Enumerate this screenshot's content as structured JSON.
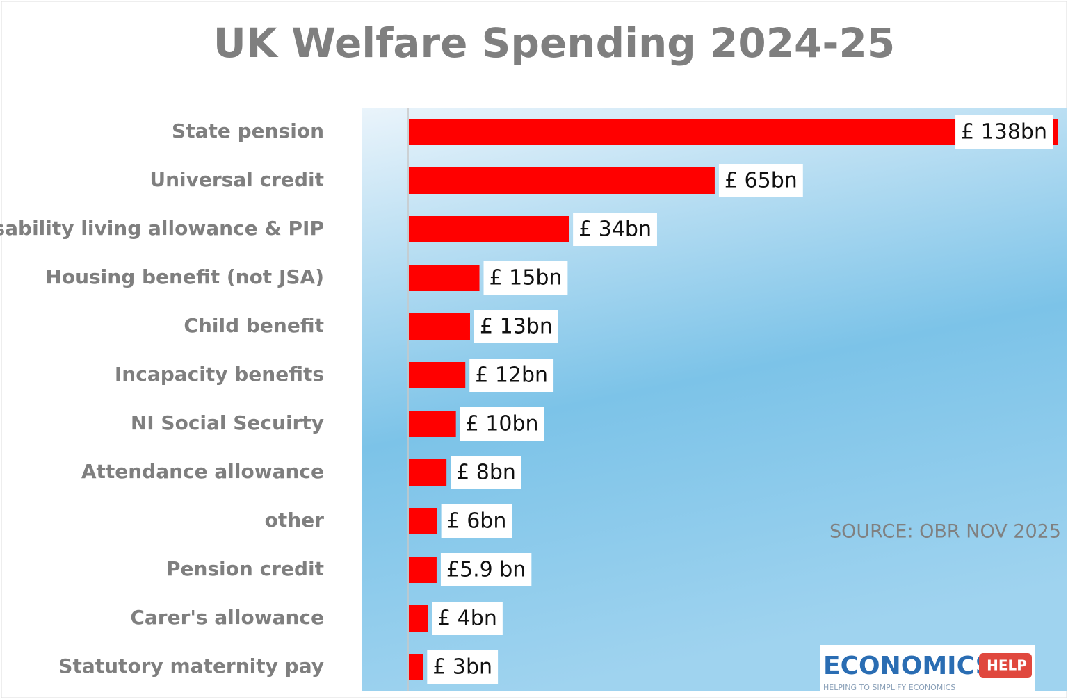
{
  "chart_data": {
    "type": "bar",
    "orientation": "horizontal",
    "title": "UK Welfare Spending 2024-25",
    "categories": [
      "State pension",
      "Universal credit",
      "Disability living allowance & PIP",
      "Housing benefit (not JSA)",
      "Child benefit",
      "Incapacity benefits",
      "NI Social Secuirty",
      "Attendance allowance",
      "other",
      "Pension credit",
      "Carer's allowance",
      "Statutory maternity pay"
    ],
    "values": [
      138,
      65,
      34,
      15,
      13,
      12,
      10,
      8,
      6,
      5.9,
      4,
      3
    ],
    "value_labels": [
      "£ 138bn",
      "£ 65bn",
      "£ 34bn",
      "£ 15bn",
      "£ 13bn",
      "£ 12bn",
      "£ 10bn",
      "£ 8bn",
      "£ 6bn",
      "£5.9 bn",
      "£ 4bn",
      "£ 3bn"
    ],
    "color": "#ff0000",
    "source": "SOURCE: OBR NOV 2025"
  },
  "logo": {
    "name": "ECONOMICS",
    "badge": "HELP",
    "tagline": "HELPING TO SIMPLIFY ECONOMICS"
  }
}
